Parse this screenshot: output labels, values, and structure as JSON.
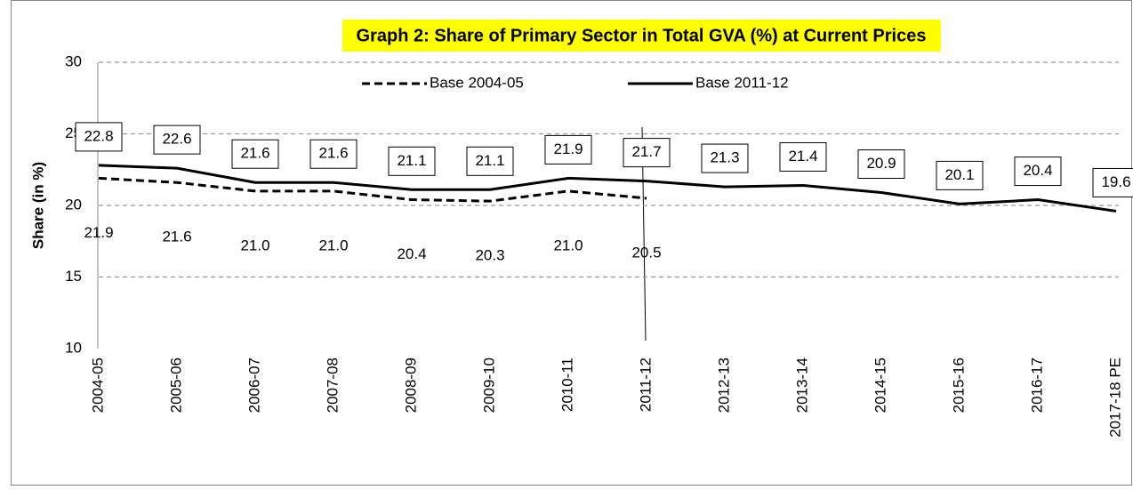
{
  "chart_data": {
    "type": "line",
    "title": "Graph 2: Share of Primary Sector in Total GVA (%) at Current Prices",
    "y_label": "Share  (in %)",
    "categories": [
      "2004-05",
      "2005-06",
      "2006-07",
      "2007-08",
      "2008-09",
      "2009-10",
      "2010-11",
      "2011-12",
      "2012-13",
      "2013-14",
      "2014-15",
      "2015-16",
      "2016-17",
      "2017-18 PE"
    ],
    "series": [
      {
        "name": "Base 2004-05",
        "color": "#000000",
        "dashed": true,
        "values": [
          21.9,
          21.6,
          21.0,
          21.0,
          20.4,
          20.3,
          21.0,
          20.5,
          null,
          null,
          null,
          null,
          null,
          null
        ],
        "value_labels": [
          "21.9",
          "21.6",
          "21.0",
          "21.0",
          "20.4",
          "20.3",
          "21.0",
          "20.5",
          null,
          null,
          null,
          null,
          null,
          null
        ]
      },
      {
        "name": "Base 2011-12",
        "color": "#000000",
        "dashed": false,
        "values": [
          22.8,
          22.6,
          21.6,
          21.6,
          21.1,
          21.1,
          21.9,
          21.7,
          21.3,
          21.4,
          20.9,
          20.1,
          20.4,
          19.6
        ]
      }
    ],
    "ylim": [
      10,
      30
    ],
    "yticks": [
      10,
      15,
      20,
      25,
      30
    ],
    "grid": true
  }
}
